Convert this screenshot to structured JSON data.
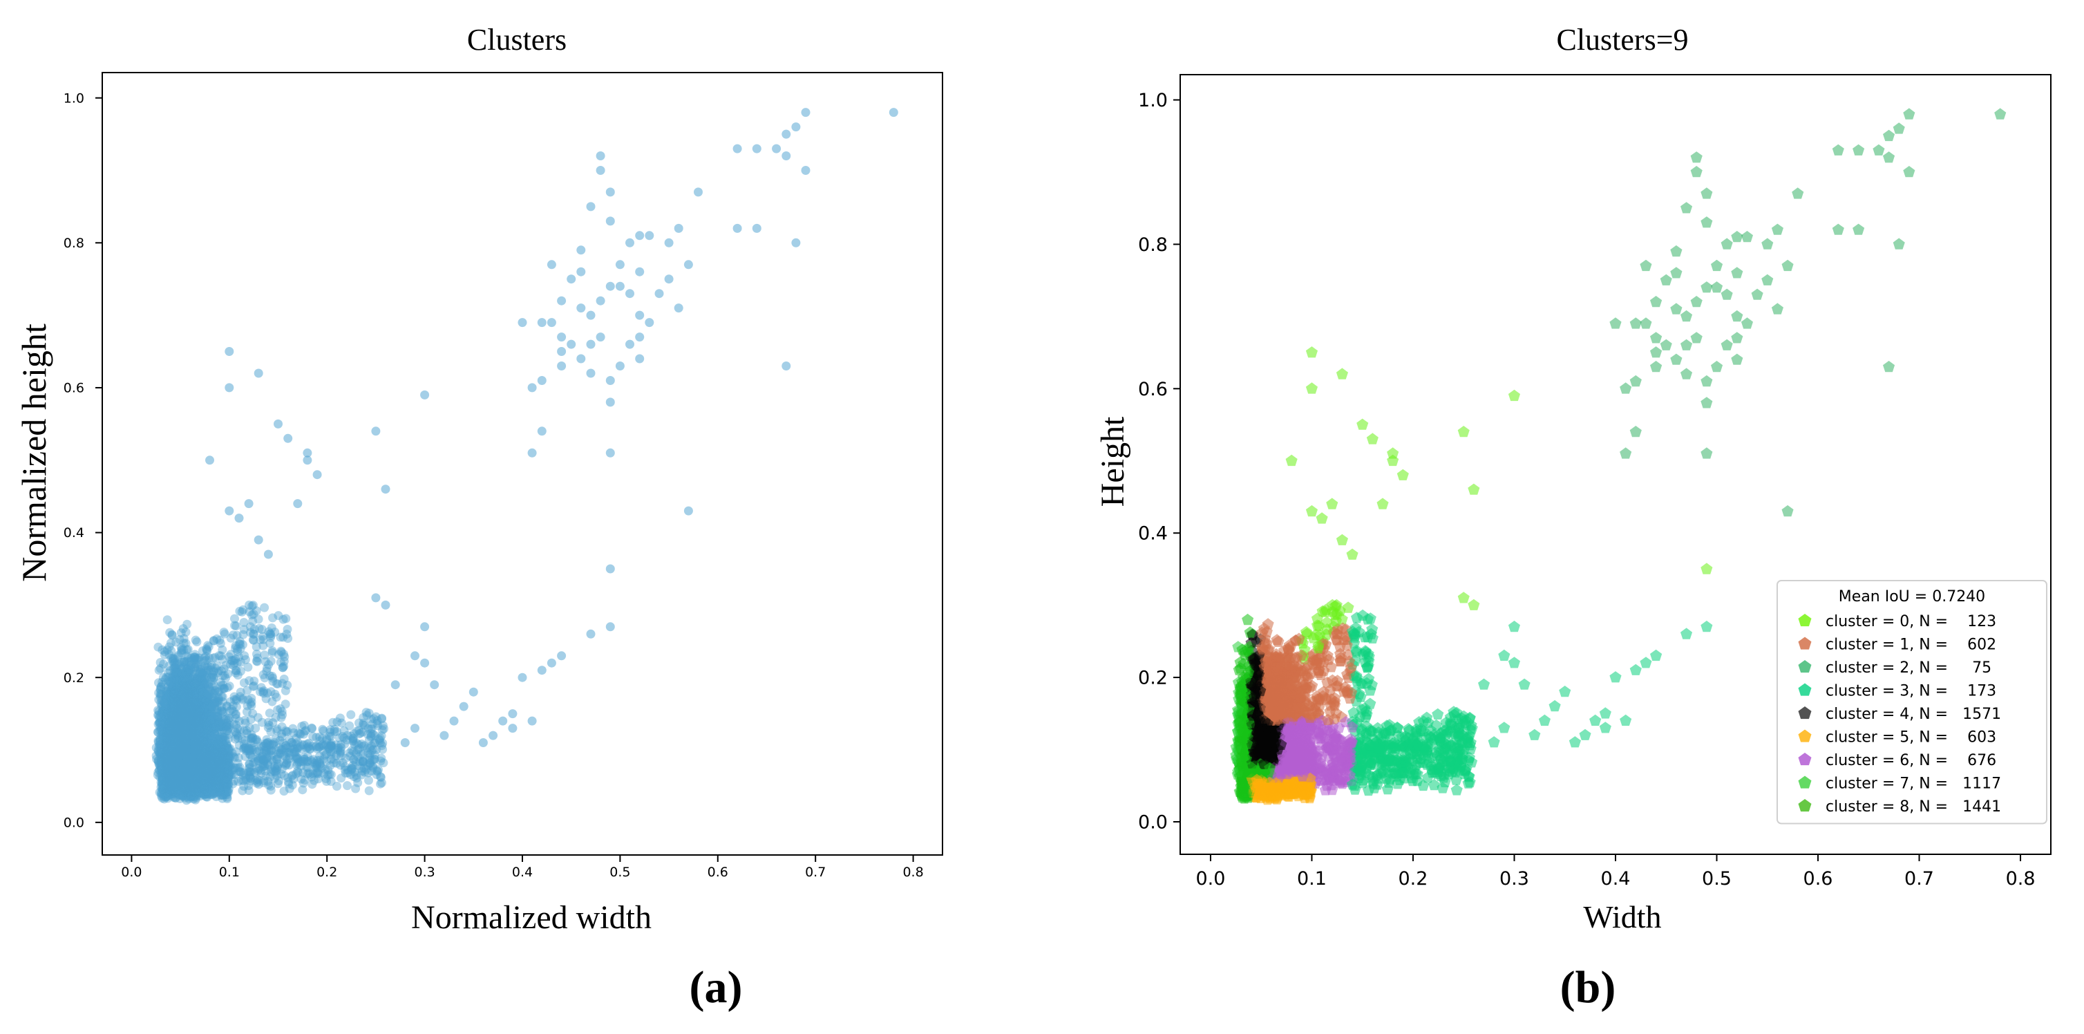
{
  "panel_a": {
    "label": "(a)",
    "chart_data": {
      "type": "scatter",
      "title": "Clusters",
      "xlabel": "Normalized width",
      "ylabel": "Normalized height",
      "xlim": [
        -0.03,
        0.83
      ],
      "ylim": [
        -0.045,
        1.035
      ],
      "xticks": [
        0.0,
        0.1,
        0.2,
        0.3,
        0.4,
        0.5,
        0.6,
        0.7,
        0.8
      ],
      "yticks": [
        0.0,
        0.2,
        0.4,
        0.6,
        0.8,
        1.0
      ],
      "point_color": "#4a9fd0",
      "series": [
        {
          "name": "boxes",
          "points": [
            [
              0.78,
              0.98
            ],
            [
              0.69,
              0.98
            ],
            [
              0.68,
              0.96
            ],
            [
              0.67,
              0.95
            ],
            [
              0.66,
              0.93
            ],
            [
              0.64,
              0.93
            ],
            [
              0.62,
              0.93
            ],
            [
              0.69,
              0.9
            ],
            [
              0.67,
              0.92
            ],
            [
              0.68,
              0.8
            ],
            [
              0.67,
              0.63
            ],
            [
              0.62,
              0.82
            ],
            [
              0.64,
              0.82
            ],
            [
              0.58,
              0.87
            ],
            [
              0.56,
              0.82
            ],
            [
              0.55,
              0.8
            ],
            [
              0.53,
              0.81
            ],
            [
              0.52,
              0.81
            ],
            [
              0.51,
              0.8
            ],
            [
              0.5,
              0.77
            ],
            [
              0.52,
              0.76
            ],
            [
              0.55,
              0.75
            ],
            [
              0.57,
              0.77
            ],
            [
              0.56,
              0.71
            ],
            [
              0.54,
              0.73
            ],
            [
              0.53,
              0.69
            ],
            [
              0.52,
              0.7
            ],
            [
              0.51,
              0.73
            ],
            [
              0.5,
              0.74
            ],
            [
              0.49,
              0.74
            ],
            [
              0.48,
              0.72
            ],
            [
              0.47,
              0.7
            ],
            [
              0.46,
              0.71
            ],
            [
              0.48,
              0.92
            ],
            [
              0.48,
              0.9
            ],
            [
              0.49,
              0.87
            ],
            [
              0.49,
              0.83
            ],
            [
              0.47,
              0.85
            ],
            [
              0.46,
              0.79
            ],
            [
              0.46,
              0.76
            ],
            [
              0.45,
              0.75
            ],
            [
              0.44,
              0.72
            ],
            [
              0.43,
              0.77
            ],
            [
              0.43,
              0.69
            ],
            [
              0.44,
              0.67
            ],
            [
              0.45,
              0.66
            ],
            [
              0.46,
              0.64
            ],
            [
              0.47,
              0.62
            ],
            [
              0.47,
              0.66
            ],
            [
              0.48,
              0.67
            ],
            [
              0.49,
              0.61
            ],
            [
              0.49,
              0.58
            ],
            [
              0.5,
              0.63
            ],
            [
              0.51,
              0.66
            ],
            [
              0.52,
              0.64
            ],
            [
              0.52,
              0.67
            ],
            [
              0.42,
              0.69
            ],
            [
              0.42,
              0.61
            ],
            [
              0.41,
              0.6
            ],
            [
              0.42,
              0.54
            ],
            [
              0.44,
              0.63
            ],
            [
              0.44,
              0.65
            ],
            [
              0.4,
              0.69
            ],
            [
              0.41,
              0.51
            ],
            [
              0.49,
              0.51
            ],
            [
              0.57,
              0.43
            ],
            [
              0.49,
              0.35
            ],
            [
              0.49,
              0.27
            ],
            [
              0.47,
              0.26
            ],
            [
              0.44,
              0.23
            ],
            [
              0.43,
              0.22
            ],
            [
              0.42,
              0.21
            ],
            [
              0.41,
              0.14
            ],
            [
              0.4,
              0.2
            ],
            [
              0.39,
              0.15
            ],
            [
              0.39,
              0.13
            ],
            [
              0.38,
              0.14
            ],
            [
              0.37,
              0.12
            ],
            [
              0.36,
              0.11
            ],
            [
              0.35,
              0.18
            ],
            [
              0.34,
              0.16
            ],
            [
              0.33,
              0.14
            ],
            [
              0.32,
              0.12
            ],
            [
              0.31,
              0.19
            ],
            [
              0.3,
              0.22
            ],
            [
              0.3,
              0.27
            ],
            [
              0.29,
              0.23
            ],
            [
              0.29,
              0.13
            ],
            [
              0.28,
              0.11
            ],
            [
              0.27,
              0.19
            ],
            [
              0.26,
              0.46
            ],
            [
              0.26,
              0.3
            ],
            [
              0.25,
              0.31
            ],
            [
              0.25,
              0.54
            ],
            [
              0.3,
              0.59
            ],
            [
              0.13,
              0.62
            ],
            [
              0.1,
              0.65
            ],
            [
              0.1,
              0.6
            ],
            [
              0.08,
              0.5
            ],
            [
              0.15,
              0.55
            ],
            [
              0.16,
              0.53
            ],
            [
              0.18,
              0.51
            ],
            [
              0.18,
              0.5
            ],
            [
              0.19,
              0.48
            ],
            [
              0.17,
              0.44
            ],
            [
              0.12,
              0.44
            ],
            [
              0.11,
              0.42
            ],
            [
              0.1,
              0.43
            ],
            [
              0.14,
              0.37
            ],
            [
              0.13,
              0.39
            ]
          ]
        },
        {
          "name": "dense",
          "mode": "cloud",
          "count": 5200,
          "seed": 7
        }
      ]
    }
  },
  "panel_b": {
    "label": "(b)",
    "chart_data": {
      "type": "scatter",
      "title": "Clusters=9",
      "xlabel": "Width",
      "ylabel": "Height",
      "xlim": [
        -0.03,
        0.83
      ],
      "ylim": [
        -0.045,
        1.035
      ],
      "xticks": [
        0.0,
        0.1,
        0.2,
        0.3,
        0.4,
        0.5,
        0.6,
        0.7,
        0.8
      ],
      "yticks": [
        0.0,
        0.2,
        0.4,
        0.6,
        0.8,
        1.0
      ],
      "marker": "pentagon",
      "legend": {
        "title": "Mean IoU = 0.7240",
        "position": "lower-right",
        "entries": [
          {
            "label": "cluster = 0, N =    123",
            "color": "#7ff51f"
          },
          {
            "label": "cluster = 1, N =    602",
            "color": "#d67a55"
          },
          {
            "label": "cluster = 2, N =     75",
            "color": "#4cbf7d"
          },
          {
            "label": "cluster = 3, N =    173",
            "color": "#1fd68f"
          },
          {
            "label": "cluster = 4, N =   1571",
            "color": "#3f3f3f"
          },
          {
            "label": "cluster = 5, N =    603",
            "color": "#ffb81f"
          },
          {
            "label": "cluster = 6, N =    676",
            "color": "#b766d6"
          },
          {
            "label": "cluster = 7, N =   1117",
            "color": "#52d652"
          },
          {
            "label": "cluster = 8, N =   1441",
            "color": "#55c230"
          }
        ]
      },
      "cluster_colors": [
        "#6cf01a",
        "#d27048",
        "#3bb46a",
        "#0ed280",
        "#050505",
        "#ffae0a",
        "#b45ed2",
        "#18c218",
        "#2ed240"
      ]
    }
  }
}
